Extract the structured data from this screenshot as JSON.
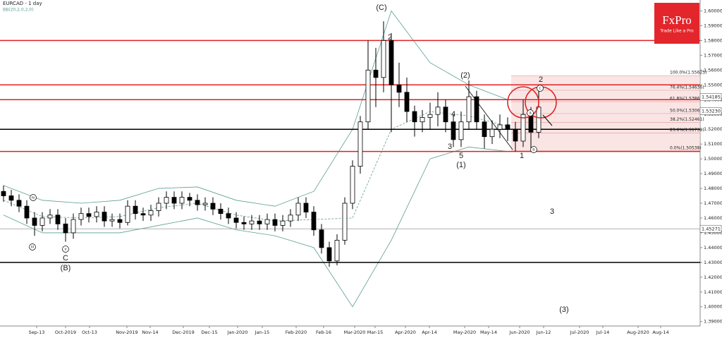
{
  "chart_data": {
    "type": "candlestick",
    "title": "EURCAD - 1 day",
    "subtitle": "BB(20,2,0,2,0)",
    "open": [
      1.478,
      1.475,
      1.472,
      1.468,
      1.46,
      1.455,
      1.46,
      1.462,
      1.456,
      1.45,
      1.459,
      1.463,
      1.461,
      1.464,
      1.458,
      1.459,
      1.457,
      1.468,
      1.463,
      1.462,
      1.465,
      1.47,
      1.474,
      1.47,
      1.474,
      1.472,
      1.469,
      1.47,
      1.466,
      1.463,
      1.46,
      1.457,
      1.456,
      1.458,
      1.456,
      1.459,
      1.455,
      1.458,
      1.462,
      1.47,
      1.464,
      1.452,
      1.44,
      1.431,
      1.445,
      1.47,
      1.495,
      1.525,
      1.56,
      1.555,
      1.58,
      1.55,
      1.545,
      1.532,
      1.525,
      1.528,
      1.53,
      1.535,
      1.525,
      1.513,
      1.525,
      1.542,
      1.525,
      1.515,
      1.52,
      1.523,
      1.52,
      1.512,
      1.53,
      1.518
    ],
    "high": [
      1.482,
      1.479,
      1.476,
      1.472,
      1.464,
      1.464,
      1.466,
      1.466,
      1.46,
      1.463,
      1.467,
      1.467,
      1.468,
      1.468,
      1.463,
      1.463,
      1.472,
      1.472,
      1.467,
      1.469,
      1.474,
      1.478,
      1.478,
      1.478,
      1.477,
      1.476,
      1.474,
      1.474,
      1.47,
      1.467,
      1.464,
      1.461,
      1.462,
      1.462,
      1.463,
      1.463,
      1.462,
      1.466,
      1.474,
      1.474,
      1.468,
      1.456,
      1.444,
      1.449,
      1.474,
      1.499,
      1.529,
      1.58,
      1.575,
      1.593,
      1.585,
      1.565,
      1.555,
      1.536,
      1.533,
      1.538,
      1.545,
      1.54,
      1.53,
      1.532,
      1.553,
      1.546,
      1.53,
      1.526,
      1.53,
      1.528,
      1.525,
      1.54,
      1.535,
      1.548
    ],
    "low": [
      1.471,
      1.468,
      1.464,
      1.456,
      1.448,
      1.451,
      1.456,
      1.452,
      1.444,
      1.446,
      1.455,
      1.457,
      1.457,
      1.454,
      1.454,
      1.453,
      1.455,
      1.459,
      1.458,
      1.458,
      1.461,
      1.466,
      1.466,
      1.466,
      1.468,
      1.465,
      1.465,
      1.462,
      1.459,
      1.456,
      1.453,
      1.452,
      1.452,
      1.452,
      1.452,
      1.451,
      1.451,
      1.454,
      1.458,
      1.46,
      1.448,
      1.436,
      1.427,
      1.428,
      1.442,
      1.466,
      1.49,
      1.52,
      1.535,
      1.545,
      1.518,
      1.535,
      1.525,
      1.515,
      1.518,
      1.52,
      1.522,
      1.518,
      1.508,
      1.508,
      1.52,
      1.52,
      1.507,
      1.51,
      1.514,
      1.512,
      1.505,
      1.508,
      1.506,
      1.514
    ],
    "close": [
      1.475,
      1.472,
      1.468,
      1.46,
      1.455,
      1.46,
      1.462,
      1.456,
      1.45,
      1.459,
      1.463,
      1.461,
      1.464,
      1.458,
      1.459,
      1.457,
      1.468,
      1.463,
      1.462,
      1.465,
      1.47,
      1.474,
      1.47,
      1.474,
      1.472,
      1.469,
      1.47,
      1.466,
      1.463,
      1.46,
      1.457,
      1.456,
      1.458,
      1.456,
      1.459,
      1.455,
      1.458,
      1.462,
      1.47,
      1.464,
      1.452,
      1.44,
      1.431,
      1.445,
      1.47,
      1.495,
      1.525,
      1.56,
      1.555,
      1.58,
      1.55,
      1.545,
      1.532,
      1.525,
      1.528,
      1.53,
      1.535,
      1.525,
      1.513,
      1.525,
      1.542,
      1.525,
      1.515,
      1.52,
      1.523,
      1.52,
      1.512,
      1.53,
      1.518,
      1.535
    ],
    "bb_upper": [
      1.482,
      1.472,
      1.47,
      1.472,
      1.48,
      1.481,
      1.472,
      1.468,
      1.478,
      1.52,
      1.6,
      1.565,
      1.55,
      1.54
    ],
    "bb_middle": [
      1.472,
      1.461,
      1.46,
      1.461,
      1.467,
      1.47,
      1.462,
      1.458,
      1.459,
      1.46,
      1.52,
      1.532,
      1.529,
      1.522
    ],
    "bb_lower": [
      1.462,
      1.45,
      1.45,
      1.45,
      1.455,
      1.46,
      1.452,
      1.448,
      1.44,
      1.4,
      1.445,
      1.5,
      1.508,
      1.505
    ],
    "band_color": "#5a9e94",
    "ylim": [
      1.387,
      1.605
    ],
    "yticks": [
      {
        "value": 1.39,
        "label": "1.39000"
      },
      {
        "value": 1.4,
        "label": "1.40000"
      },
      {
        "value": 1.41,
        "label": "1.41000"
      },
      {
        "value": 1.42,
        "label": "1.42000"
      },
      {
        "value": 1.43,
        "label": "1.43000"
      },
      {
        "value": 1.44,
        "label": "1.44000"
      },
      {
        "value": 1.45,
        "label": "1.45000"
      },
      {
        "value": 1.46,
        "label": "1.46000"
      },
      {
        "value": 1.47,
        "label": "1.47000"
      },
      {
        "value": 1.48,
        "label": "1.48000"
      },
      {
        "value": 1.49,
        "label": "1.49000"
      },
      {
        "value": 1.5,
        "label": "1.50000"
      },
      {
        "value": 1.51,
        "label": "1.51000"
      },
      {
        "value": 1.52,
        "label": "1.52000"
      },
      {
        "value": 1.53,
        "label": "1.53000"
      },
      {
        "value": 1.54,
        "label": "1.54000"
      },
      {
        "value": 1.55,
        "label": "1.55000"
      },
      {
        "value": 1.56,
        "label": "1.56000"
      },
      {
        "value": 1.57,
        "label": "1.57000"
      },
      {
        "value": 1.58,
        "label": "1.58000"
      },
      {
        "value": 1.59,
        "label": "1.59000"
      },
      {
        "value": 1.6,
        "label": "1.60000"
      }
    ],
    "x_labels": [
      "Sep-13",
      "Oct-2019",
      "Oct-13",
      "Nov-2019",
      "Nov-14",
      "Dec-2019",
      "Dec-15",
      "Jan-2020",
      "Jan-15",
      "Feb-2020",
      "Feb-16",
      "Mar-2020",
      "Mar-15",
      "Apr-2020",
      "Apr-14",
      "May-2020",
      "May-14",
      "Jun-2020",
      "Jun-12",
      "Jul-2020",
      "Jul-14",
      "Aug-2020",
      "Aug-14"
    ],
    "hlines": [
      {
        "value": 1.58,
        "color": "#e02020"
      },
      {
        "value": 1.55,
        "color": "#e02020"
      },
      {
        "value": 1.54,
        "color": "#e02020"
      },
      {
        "value": 1.505,
        "color": "#e02020"
      },
      {
        "value": 1.52,
        "color": "#000000"
      },
      {
        "value": 1.43,
        "color": "#000000"
      },
      {
        "value": 1.4527,
        "color": "#999999"
      }
    ],
    "price_tags": [
      1.54185,
      {
        "value": 1.5323,
        "label": "1.53230"
      },
      1.45271
    ],
    "fib_levels": [
      {
        "value": 1.55625,
        "label": "100.0%(1.55625)"
      },
      {
        "value": 1.54636,
        "label": "76.4%(1.54636)"
      },
      {
        "value": 1.53862,
        "label": "61.8%(1.53862)"
      },
      {
        "value": 1.53062,
        "label": "50.0%(1.53062)"
      },
      {
        "value": 1.52461,
        "label": "38.2%(1.52461)"
      },
      {
        "value": 1.51739,
        "label": "23.6%(1.51739)"
      },
      {
        "value": 1.50538,
        "label": "0.0%(1.50538)"
      }
    ],
    "annotations": [
      "(C)",
      "2",
      "(2)",
      "4",
      "3",
      "5",
      "(1)",
      "1",
      "2",
      "3",
      "(3)",
      "C",
      "(B)"
    ],
    "wave_markers": [
      "iii",
      "v",
      "iv",
      "a",
      "b",
      "c"
    ]
  },
  "logo": {
    "name": "FxPro",
    "tagline": "Trade Like a Pro"
  }
}
